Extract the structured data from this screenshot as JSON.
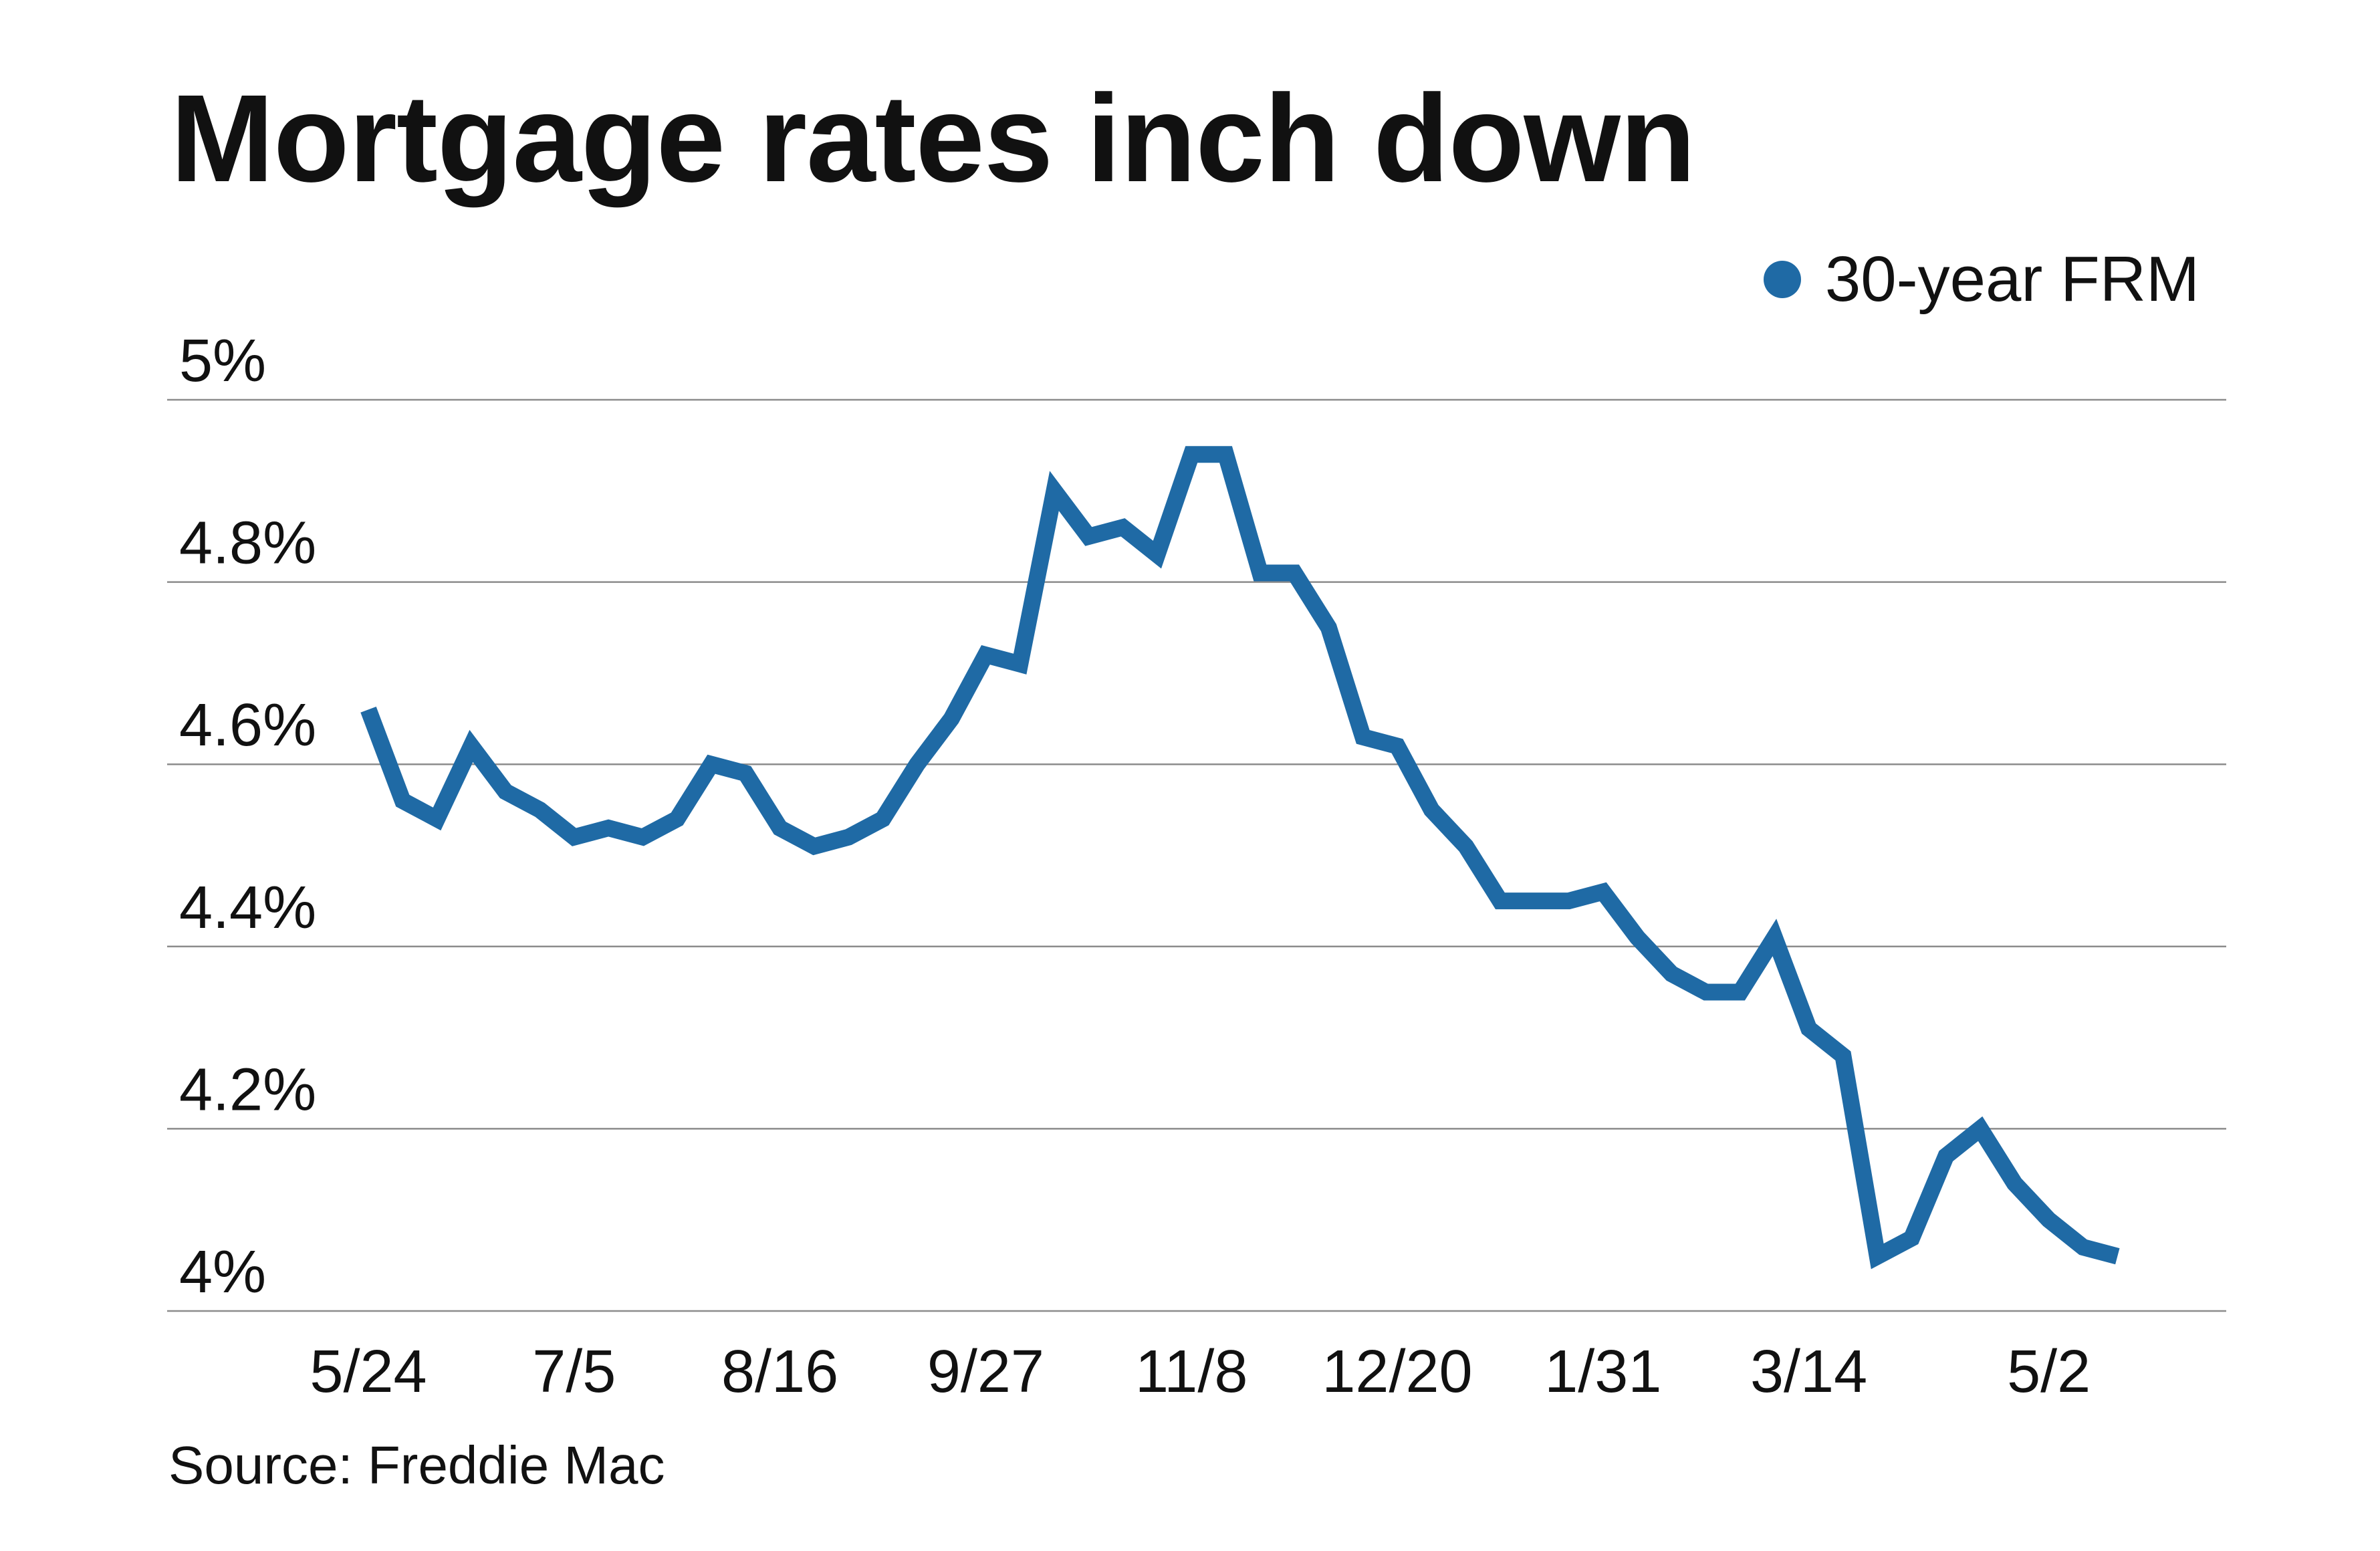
{
  "chart_data": {
    "type": "line",
    "title": "Mortgage rates inch down",
    "xlabel": "",
    "ylabel": "",
    "ylim": [
      4.0,
      5.0
    ],
    "yticks": [
      {
        "value": 4.0,
        "label": "4%"
      },
      {
        "value": 4.2,
        "label": "4.2%"
      },
      {
        "value": 4.4,
        "label": "4.4%"
      },
      {
        "value": 4.6,
        "label": "4.6%"
      },
      {
        "value": 4.8,
        "label": "4.8%"
      },
      {
        "value": 5.0,
        "label": "5%"
      }
    ],
    "xticks": [
      {
        "index": 0,
        "label": "5/24"
      },
      {
        "index": 6,
        "label": "7/5"
      },
      {
        "index": 12,
        "label": "8/16"
      },
      {
        "index": 18,
        "label": "9/27"
      },
      {
        "index": 24,
        "label": "11/8"
      },
      {
        "index": 30,
        "label": "12/20"
      },
      {
        "index": 36,
        "label": "1/31"
      },
      {
        "index": 42,
        "label": "3/14"
      },
      {
        "index": 49,
        "label": "5/2"
      }
    ],
    "grid": true,
    "legend_position": "top-right",
    "series": [
      {
        "name": "30-year FRM",
        "color": "#1f6aa5",
        "values": [
          4.66,
          4.56,
          4.54,
          4.62,
          4.57,
          4.55,
          4.52,
          4.53,
          4.52,
          4.54,
          4.6,
          4.59,
          4.53,
          4.51,
          4.52,
          4.54,
          4.6,
          4.65,
          4.72,
          4.71,
          4.9,
          4.85,
          4.86,
          4.83,
          4.94,
          4.94,
          4.81,
          4.81,
          4.75,
          4.63,
          4.62,
          4.55,
          4.51,
          4.45,
          4.45,
          4.45,
          4.46,
          4.41,
          4.37,
          4.35,
          4.35,
          4.41,
          4.31,
          4.28,
          4.06,
          4.08,
          4.17,
          4.2,
          4.14,
          4.1,
          4.07,
          4.06
        ]
      }
    ]
  },
  "source": "Source: Freddie Mac"
}
